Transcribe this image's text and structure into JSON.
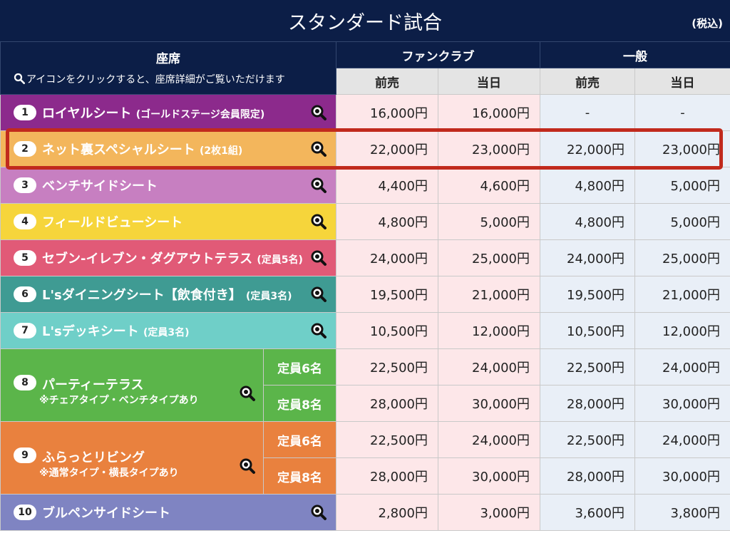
{
  "header": {
    "title": "スタンダード試合",
    "tax_note": "(税込)"
  },
  "columns": {
    "seat": "座席",
    "seat_note": "アイコンをクリックすると、座席詳細がご覧いただけます",
    "fanclub": "ファンクラブ",
    "general": "一般",
    "presale": "前売",
    "sameday": "当日"
  },
  "rows": [
    {
      "num": "1",
      "name": "ロイヤルシート",
      "note": "(ゴールドステージ会員限定)",
      "color": "#8c2a8c",
      "prices": [
        "16,000円",
        "16,000円",
        "-",
        "-"
      ]
    },
    {
      "num": "2",
      "name": "ネット裏スペシャルシート",
      "note": "(2枚1組)",
      "color": "#f3b65c",
      "prices": [
        "22,000円",
        "23,000円",
        "22,000円",
        "23,000円"
      ]
    },
    {
      "num": "3",
      "name": "ベンチサイドシート",
      "note": "",
      "color": "#c77fc1",
      "prices": [
        "4,400円",
        "4,600円",
        "4,800円",
        "5,000円"
      ]
    },
    {
      "num": "4",
      "name": "フィールドビューシート",
      "note": "",
      "color": "#f6d53b",
      "prices": [
        "4,800円",
        "5,000円",
        "4,800円",
        "5,000円"
      ]
    },
    {
      "num": "5",
      "name": "セブン-イレブン・ダグアウトテラス",
      "note": "(定員5名)",
      "color": "#e15a77",
      "prices": [
        "24,000円",
        "25,000円",
        "24,000円",
        "25,000円"
      ]
    },
    {
      "num": "6",
      "name": "L'sダイニングシート【飲食付き】",
      "note": "(定員3名)",
      "color": "#3f9b93",
      "prices": [
        "19,500円",
        "21,000円",
        "19,500円",
        "21,000円"
      ]
    },
    {
      "num": "7",
      "name": "L'sデッキシート",
      "note": "(定員3名)",
      "color": "#6fcfc8",
      "prices": [
        "10,500円",
        "12,000円",
        "10,500円",
        "12,000円"
      ]
    },
    {
      "num": "8",
      "name": "パーティーテラス",
      "sub_note": "※チェアタイプ・ベンチタイプあり",
      "color": "#5bb54a",
      "options": [
        {
          "cap": "定員6名",
          "prices": [
            "22,500円",
            "24,000円",
            "22,500円",
            "24,000円"
          ]
        },
        {
          "cap": "定員8名",
          "prices": [
            "28,000円",
            "30,000円",
            "28,000円",
            "30,000円"
          ]
        }
      ]
    },
    {
      "num": "9",
      "name": "ふらっとリビング",
      "sub_note": "※通常タイプ・横長タイプあり",
      "color": "#e9813e",
      "options": [
        {
          "cap": "定員6名",
          "prices": [
            "22,500円",
            "24,000円",
            "22,500円",
            "24,000円"
          ]
        },
        {
          "cap": "定員8名",
          "prices": [
            "28,000円",
            "30,000円",
            "28,000円",
            "30,000円"
          ]
        }
      ]
    },
    {
      "num": "10",
      "name": "ブルペンサイドシート",
      "note": "",
      "color": "#7f84c2",
      "prices": [
        "2,800円",
        "3,000円",
        "3,600円",
        "3,800円"
      ]
    }
  ]
}
